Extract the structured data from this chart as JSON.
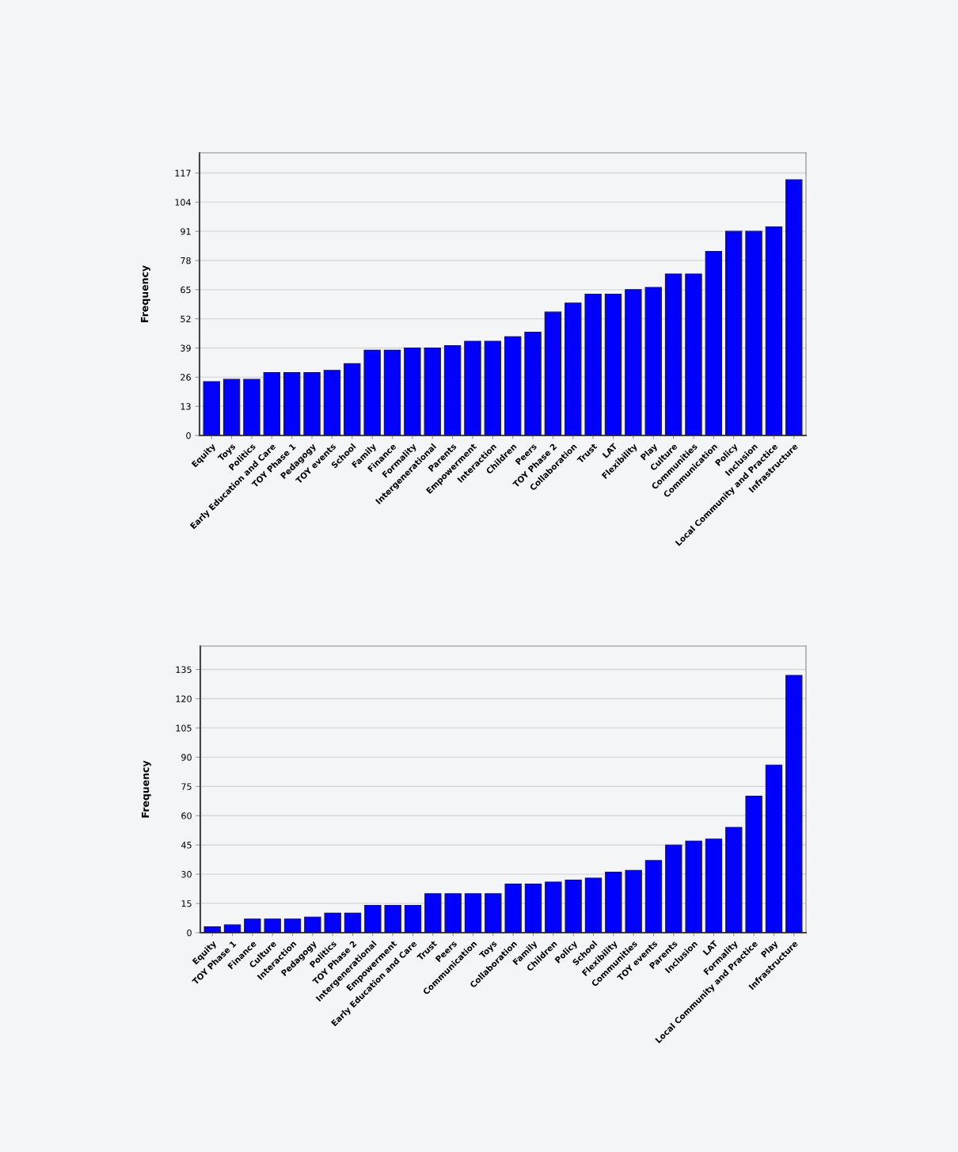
{
  "chart_data": [
    {
      "type": "bar",
      "ylabel": "Frequency",
      "categories": [
        "Equity",
        "Toys",
        "Politics",
        "Early Education and Care",
        "TOY Phase 1",
        "Pedagogy",
        "TOY events",
        "School",
        "Family",
        "Finance",
        "Formality",
        "Intergenerational",
        "Parents",
        "Empowerment",
        "Interaction",
        "Children",
        "Peers",
        "TOY Phase 2",
        "Collaboration",
        "Trust",
        "LAT",
        "Flexibility",
        "Play",
        "Culture",
        "Communities",
        "Communication",
        "Policy",
        "Inclusion",
        "Local Community and Practice",
        "Infrastructure"
      ],
      "values": [
        24,
        25,
        25,
        28,
        28,
        28,
        29,
        32,
        38,
        38,
        39,
        39,
        40,
        42,
        42,
        44,
        46,
        55,
        59,
        63,
        63,
        65,
        66,
        72,
        72,
        82,
        91,
        91,
        93,
        114
      ],
      "color": "#0000ff",
      "ylim": [
        0,
        126
      ],
      "yticks": [
        0,
        13,
        26,
        39,
        52,
        65,
        78,
        91,
        104,
        117
      ],
      "grid": "y"
    },
    {
      "type": "bar",
      "ylabel": "Frequency",
      "categories": [
        "Equity",
        "TOY Phase 1",
        "Finance",
        "Culture",
        "Interaction",
        "Pedagogy",
        "Politics",
        "TOY Phase 2",
        "Intergenerational",
        "Empowerment",
        "Early Education and Care",
        "Trust",
        "Peers",
        "Communication",
        "Toys",
        "Collaboration",
        "Family",
        "Children",
        "Policy",
        "School",
        "Flexibility",
        "Communities",
        "TOY events",
        "Parents",
        "Inclusion",
        "LAT",
        "Formality",
        "Local Community and Practice",
        "Play",
        "Infrastructure"
      ],
      "values": [
        3,
        4,
        7,
        7,
        7,
        8,
        10,
        10,
        14,
        14,
        14,
        20,
        20,
        20,
        20,
        25,
        25,
        26,
        27,
        28,
        31,
        32,
        37,
        45,
        47,
        48,
        54,
        70,
        86,
        132
      ],
      "color": "#0000ff",
      "ylim": [
        0,
        147
      ],
      "yticks": [
        0,
        15,
        30,
        45,
        60,
        75,
        90,
        105,
        120,
        135
      ],
      "grid": "y"
    }
  ]
}
